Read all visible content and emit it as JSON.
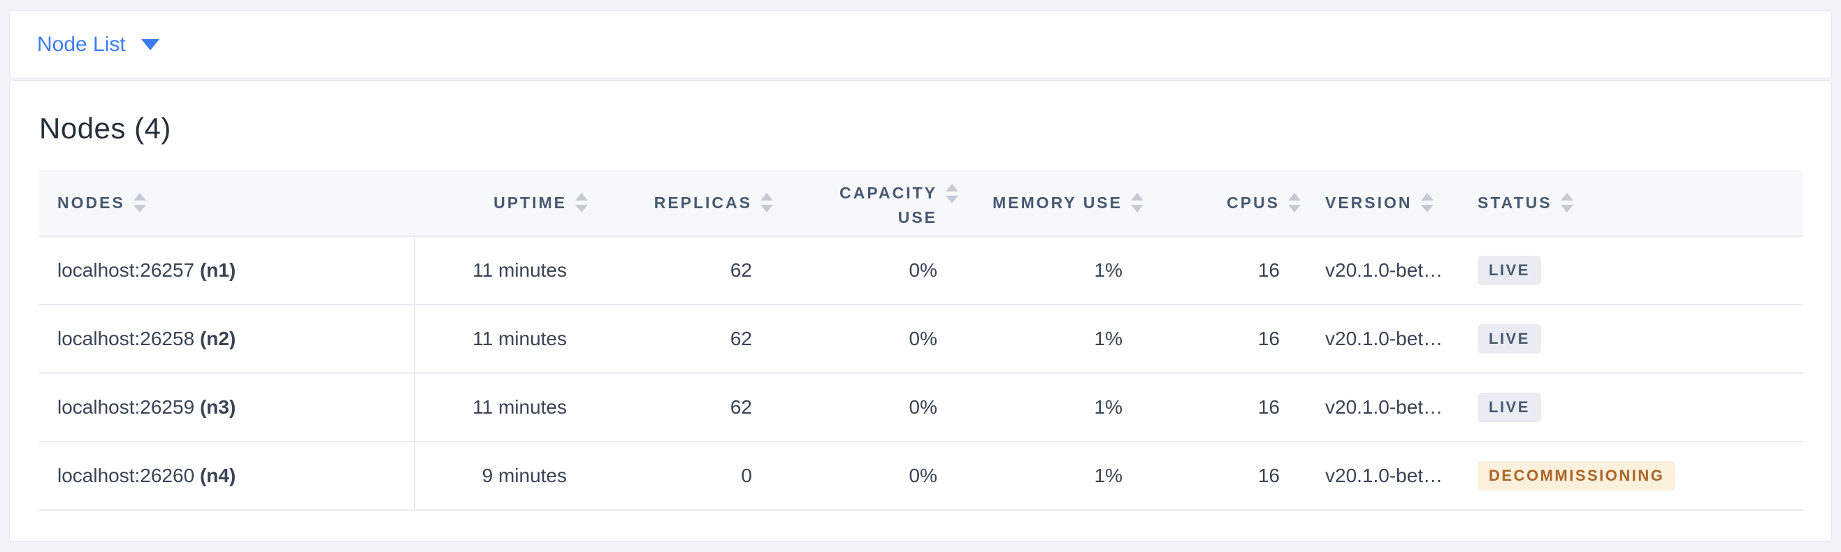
{
  "topbar": {
    "dropdown_label": "Node List",
    "dropdown_icon": "caret-down-icon"
  },
  "main": {
    "title": "Nodes (4)",
    "table": {
      "columns": [
        {
          "key": "nodes",
          "label": "NODES",
          "align": "left"
        },
        {
          "key": "uptime",
          "label": "UPTIME",
          "align": "right"
        },
        {
          "key": "replicas",
          "label": "REPLICAS",
          "align": "right"
        },
        {
          "key": "capacity_use",
          "label": "CAPACITY USE",
          "align": "right"
        },
        {
          "key": "memory_use",
          "label": "MEMORY USE",
          "align": "right"
        },
        {
          "key": "cpus",
          "label": "CPUS",
          "align": "right"
        },
        {
          "key": "version",
          "label": "VERSION",
          "align": "left"
        },
        {
          "key": "status",
          "label": "STATUS",
          "align": "left"
        }
      ],
      "rows": [
        {
          "address": "localhost:26257",
          "node_id": "(n1)",
          "uptime": "11 minutes",
          "replicas": "62",
          "capacity_use": "0%",
          "memory_use": "1%",
          "cpus": "16",
          "version": "v20.1.0-bet…",
          "status": "LIVE",
          "status_type": "live"
        },
        {
          "address": "localhost:26258",
          "node_id": "(n2)",
          "uptime": "11 minutes",
          "replicas": "62",
          "capacity_use": "0%",
          "memory_use": "1%",
          "cpus": "16",
          "version": "v20.1.0-bet…",
          "status": "LIVE",
          "status_type": "live"
        },
        {
          "address": "localhost:26259",
          "node_id": "(n3)",
          "uptime": "11 minutes",
          "replicas": "62",
          "capacity_use": "0%",
          "memory_use": "1%",
          "cpus": "16",
          "version": "v20.1.0-bet…",
          "status": "LIVE",
          "status_type": "live"
        },
        {
          "address": "localhost:26260",
          "node_id": "(n4)",
          "uptime": "9 minutes",
          "replicas": "0",
          "capacity_use": "0%",
          "memory_use": "1%",
          "cpus": "16",
          "version": "v20.1.0-bet…",
          "status": "DECOMMISSIONING",
          "status_type": "decommissioning"
        }
      ]
    }
  },
  "colors": {
    "accent_blue": "#3d7df2",
    "live_badge_bg": "#e9ecf2",
    "live_badge_text": "#475872",
    "decommissioning_badge_bg": "#fbf0dc",
    "decommissioning_badge_text": "#aa6528"
  }
}
